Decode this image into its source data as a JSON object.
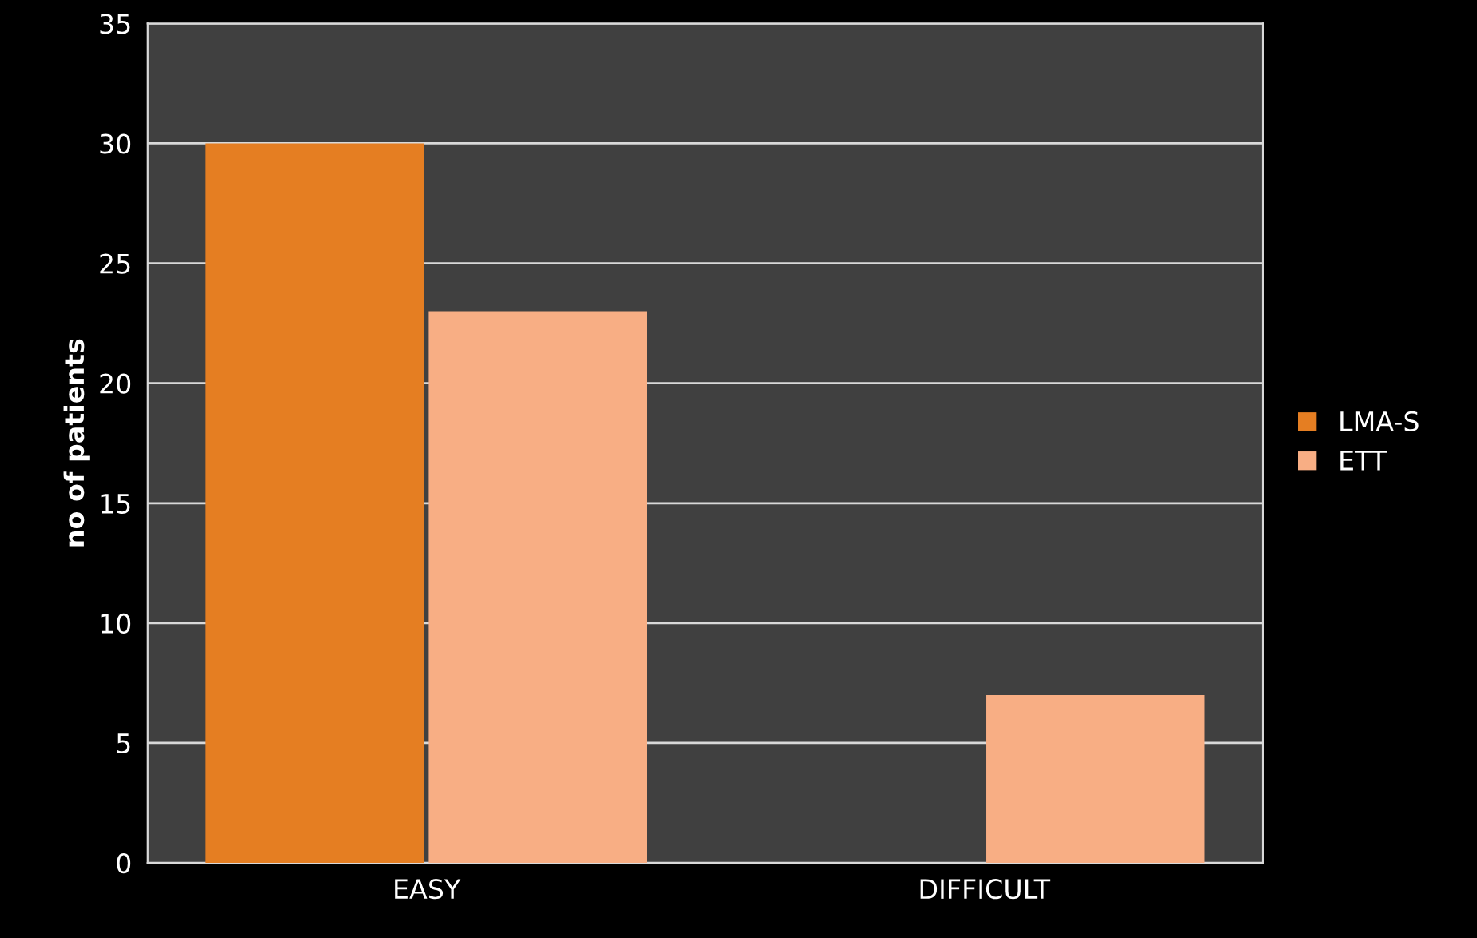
{
  "chart_data": {
    "type": "bar",
    "ylabel": "no of patients",
    "categories": [
      "EASY",
      "DIFFICULT"
    ],
    "series": [
      {
        "name": "LMA-S",
        "color": "#e57e22",
        "values": [
          30,
          0
        ]
      },
      {
        "name": "ETT",
        "color": "#f8ae84",
        "values": [
          23,
          7
        ]
      }
    ],
    "ylim": [
      0,
      35
    ],
    "yticks": [
      0,
      5,
      10,
      15,
      20,
      25,
      30,
      35
    ],
    "grid": "y",
    "legend": "right"
  }
}
